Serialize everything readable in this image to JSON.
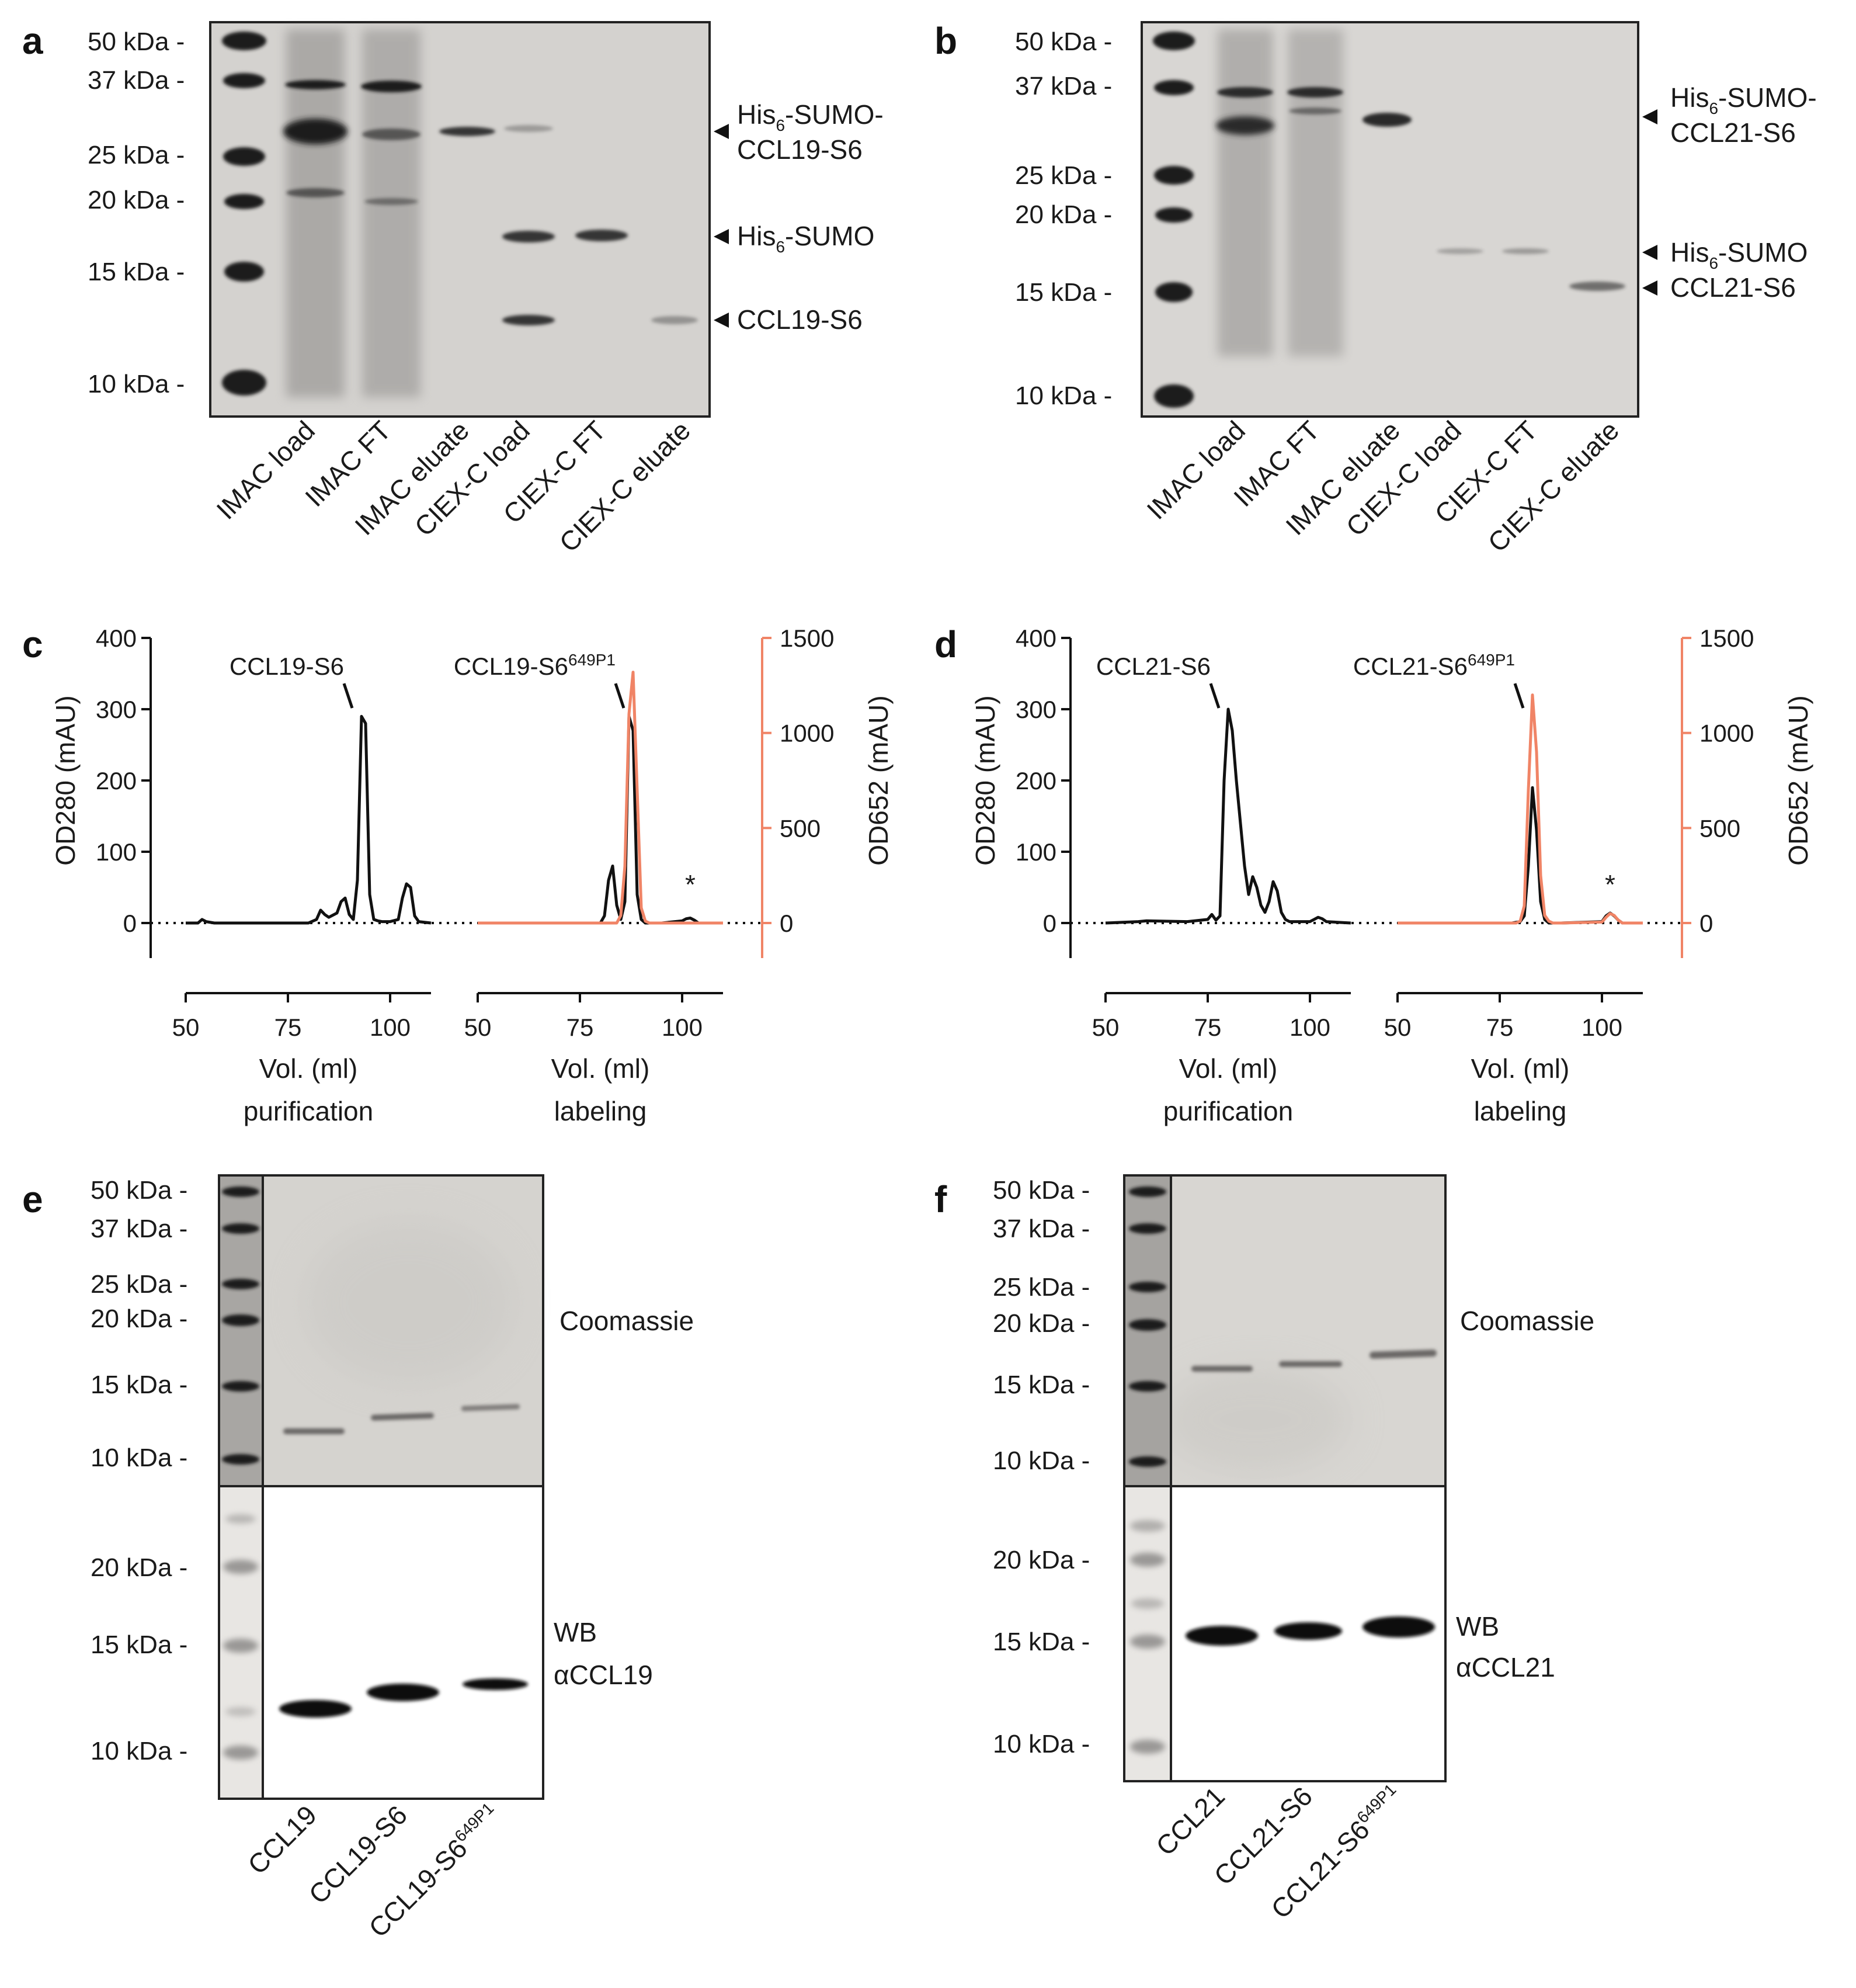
{
  "panels": {
    "a": {
      "letter": "a",
      "markers": [
        "50 kDa -",
        "37 kDa -",
        "25 kDa -",
        "20 kDa -",
        "15 kDa -",
        "10 kDa -"
      ],
      "lanes": [
        "IMAC load",
        "IMAC FT",
        "IMAC eluate",
        "CIEX-C load",
        "CIEX-C FT",
        "CIEX-C eluate"
      ],
      "annotations": {
        "fusion_line1_pre": "His",
        "fusion_line1_sub": "6",
        "fusion_line1_post": "-SUMO-",
        "fusion_line2": "CCL19-S6",
        "tag_pre": "His",
        "tag_sub": "6",
        "tag_post": "-SUMO",
        "product": "CCL19-S6"
      }
    },
    "b": {
      "letter": "b",
      "markers": [
        "50 kDa -",
        "37 kDa -",
        "25 kDa -",
        "20 kDa -",
        "15 kDa -",
        "10 kDa -"
      ],
      "lanes": [
        "IMAC load",
        "IMAC FT",
        "IMAC eluate",
        "CIEX-C load",
        "CIEX-C FT",
        "CIEX-C eluate"
      ],
      "annotations": {
        "fusion_line1_pre": "His",
        "fusion_line1_sub": "6",
        "fusion_line1_post": "-SUMO-",
        "fusion_line2": "CCL21-S6",
        "tag_pre": "His",
        "tag_sub": "6",
        "tag_post": "-SUMO",
        "product": "CCL21-S6"
      }
    },
    "c": {
      "letter": "c"
    },
    "d": {
      "letter": "d"
    },
    "e": {
      "letter": "e",
      "coomassie_markers": [
        "50 kDa -",
        "37 kDa -",
        "25 kDa -",
        "20 kDa -",
        "15 kDa -",
        "10 kDa -"
      ],
      "wb_markers": [
        "20 kDa -",
        "15 kDa -",
        "10 kDa -"
      ],
      "coomassie_label": "Coomassie",
      "wb_label_1": "WB",
      "wb_label_2": "αCCL19",
      "lanes": [
        "CCL19",
        "CCL19-S6",
        "CCL19-S6"
      ],
      "lane3_sup": "649P1"
    },
    "f": {
      "letter": "f",
      "coomassie_markers": [
        "50 kDa -",
        "37 kDa -",
        "25 kDa -",
        "20 kDa -",
        "15 kDa -",
        "10 kDa -"
      ],
      "wb_markers": [
        "20 kDa -",
        "15 kDa -",
        "10 kDa -"
      ],
      "coomassie_label": "Coomassie",
      "wb_label_1": "WB",
      "wb_label_2": "αCCL21",
      "lanes": [
        "CCL21",
        "CCL21-S6",
        "CCL21-S6"
      ],
      "lane3_sup": "649P1"
    }
  },
  "chart_data": [
    {
      "panel": "c",
      "type": "line",
      "xlabel": "Vol. (ml)",
      "ylabel_left": "OD280 (mAU)",
      "ylabel_right": "OD652 (mAU)",
      "ylim_left": [
        0,
        400
      ],
      "yticks_left": [
        "0",
        "100",
        "200",
        "300",
        "400"
      ],
      "ylim_right": [
        0,
        1500
      ],
      "yticks_right": [
        "0",
        "500",
        "1000",
        "1500"
      ],
      "dotted_zero_line": true,
      "sub_panels": [
        {
          "caption": "purification",
          "xlim": [
            50,
            110
          ],
          "xticks": [
            "50",
            "75",
            "100"
          ],
          "peak_label": "CCL19-S6",
          "peak_label_sup": "",
          "series": [
            {
              "name": "",
              "axis": "left",
              "color": "#111111",
              "x": [
                50,
                53,
                54,
                55,
                57,
                60,
                75,
                80,
                82,
                83,
                84,
                85,
                87,
                88,
                89,
                90,
                91,
                92,
                93,
                94,
                95,
                96,
                97,
                98,
                100,
                102,
                103,
                104,
                105,
                106,
                107,
                110
              ],
              "y": [
                0,
                0,
                5,
                2,
                0,
                0,
                0,
                0,
                5,
                18,
                12,
                8,
                14,
                30,
                35,
                12,
                5,
                60,
                290,
                280,
                40,
                5,
                3,
                2,
                2,
                5,
                35,
                55,
                50,
                10,
                2,
                0
              ]
            }
          ]
        },
        {
          "caption": "labeling",
          "xlim": [
            50,
            110
          ],
          "xticks": [
            "50",
            "75",
            "100"
          ],
          "peak_label": "CCL19-S6",
          "peak_label_sup": "649P1",
          "annotation": "*",
          "series": [
            {
              "name": "",
              "axis": "left",
              "color": "#111111",
              "x": [
                50,
                80,
                81,
                82,
                83,
                84,
                85,
                86,
                87,
                88,
                89,
                90,
                91,
                95,
                100,
                101,
                102,
                103,
                104,
                110
              ],
              "y": [
                0,
                0,
                10,
                60,
                80,
                25,
                5,
                30,
                290,
                270,
                40,
                5,
                0,
                0,
                3,
                6,
                7,
                4,
                0,
                0
              ]
            },
            {
              "name": "",
              "axis": "right",
              "color": "#f08466",
              "x": [
                50,
                84,
                85,
                86,
                87,
                88,
                89,
                90,
                91,
                92,
                95,
                100,
                110
              ],
              "y": [
                0,
                0,
                40,
                300,
                1100,
                1320,
                700,
                80,
                10,
                0,
                0,
                0,
                0
              ]
            }
          ]
        }
      ]
    },
    {
      "panel": "d",
      "type": "line",
      "xlabel": "Vol. (ml)",
      "ylabel_left": "OD280 (mAU)",
      "ylabel_right": "OD652 (mAU)",
      "ylim_left": [
        0,
        400
      ],
      "yticks_left": [
        "0",
        "100",
        "200",
        "300",
        "400"
      ],
      "ylim_right": [
        0,
        1500
      ],
      "yticks_right": [
        "0",
        "500",
        "1000",
        "1500"
      ],
      "dotted_zero_line": true,
      "sub_panels": [
        {
          "caption": "purification",
          "xlim": [
            50,
            110
          ],
          "xticks": [
            "50",
            "75",
            "100"
          ],
          "peak_label": "CCL21-S6",
          "peak_label_sup": "",
          "series": [
            {
              "name": "",
              "axis": "left",
              "color": "#111111",
              "x": [
                50,
                58,
                60,
                70,
                75,
                76,
                77,
                78,
                79,
                80,
                81,
                82,
                83,
                84,
                85,
                86,
                87,
                88,
                89,
                90,
                91,
                92,
                93,
                94,
                95,
                100,
                101,
                102,
                103,
                104,
                110
              ],
              "y": [
                0,
                2,
                3,
                2,
                5,
                12,
                4,
                10,
                200,
                300,
                270,
                200,
                140,
                80,
                40,
                65,
                50,
                25,
                15,
                30,
                58,
                45,
                15,
                5,
                2,
                2,
                5,
                8,
                6,
                2,
                0
              ]
            }
          ]
        },
        {
          "caption": "labeling",
          "xlim": [
            50,
            110
          ],
          "xticks": [
            "50",
            "75",
            "100"
          ],
          "peak_label": "CCL21-S6",
          "peak_label_sup": "649P1",
          "annotation": "*",
          "series": [
            {
              "name": "",
              "axis": "left",
              "color": "#111111",
              "x": [
                50,
                78,
                80,
                81,
                82,
                83,
                84,
                85,
                86,
                87,
                90,
                100,
                101,
                102,
                103,
                104,
                105,
                110
              ],
              "y": [
                0,
                0,
                2,
                10,
                80,
                190,
                130,
                30,
                5,
                0,
                0,
                2,
                10,
                14,
                10,
                4,
                0,
                0
              ]
            },
            {
              "name": "",
              "axis": "right",
              "color": "#f08466",
              "x": [
                50,
                79,
                80,
                81,
                82,
                83,
                84,
                85,
                86,
                87,
                88,
                90,
                100,
                101,
                102,
                103,
                104,
                105,
                110
              ],
              "y": [
                0,
                0,
                10,
                90,
                700,
                1200,
                900,
                250,
                40,
                10,
                0,
                0,
                5,
                30,
                50,
                40,
                15,
                0,
                0
              ]
            }
          ]
        }
      ]
    }
  ]
}
